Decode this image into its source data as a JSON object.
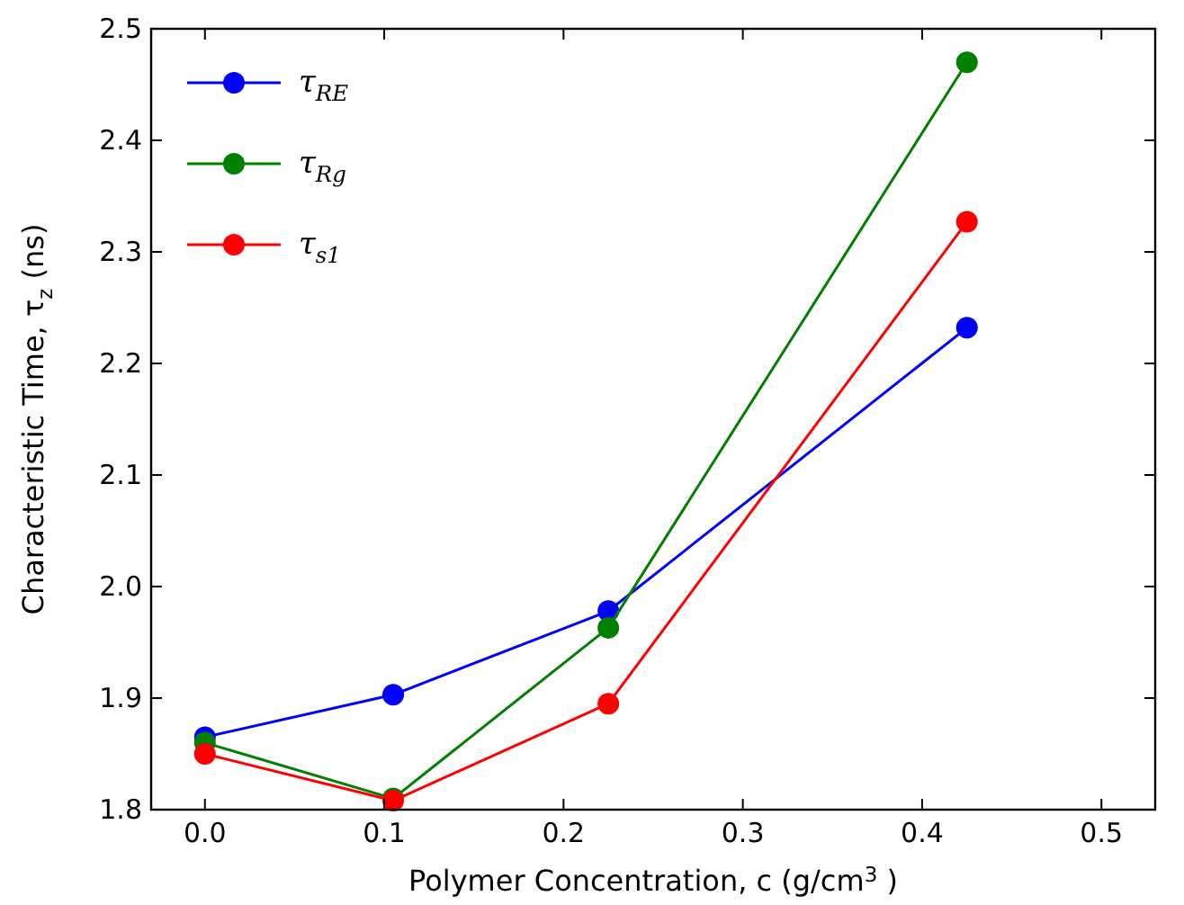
{
  "chart_data": {
    "type": "line",
    "xlabel": "Polymer Concentration, c (g/cm$^{3}$ )",
    "ylabel": "Characteristic Time, τ$_{z}$ (ns)",
    "x": [
      0,
      0.105,
      0.225,
      0.425
    ],
    "series": [
      {
        "name": "τ$_{RE}$",
        "color": "#0000ff",
        "values": [
          1.865,
          1.903,
          1.978,
          2.232
        ]
      },
      {
        "name": "τ$_{Rg}$",
        "color": "#008000",
        "values": [
          1.86,
          1.81,
          1.963,
          2.47
        ]
      },
      {
        "name": "τ$_{s1}$",
        "color": "#ff0000",
        "values": [
          1.85,
          1.808,
          1.895,
          2.327
        ]
      }
    ],
    "xlim": [
      -0.03,
      0.53
    ],
    "ylim": [
      1.8,
      2.5
    ],
    "xticks": [
      {
        "value": 0,
        "label": "0.0"
      },
      0.1,
      0.2,
      0.3,
      0.4,
      0.5
    ],
    "yticks": [
      1.8,
      1.9,
      {
        "value": 2,
        "label": "2.0"
      },
      2.1,
      2.2,
      2.3,
      2.4,
      2.5
    ],
    "grid": false,
    "legend": "top left",
    "marker": "circle",
    "line_style": "solid"
  }
}
